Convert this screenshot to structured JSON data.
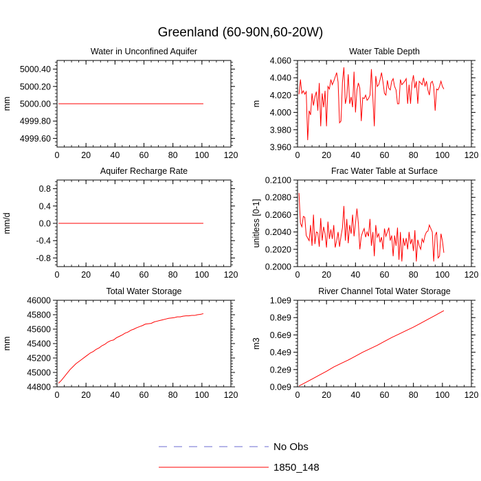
{
  "figure": {
    "title": "Greenland (60-90N,60-20W)"
  },
  "legend": {
    "entries": [
      {
        "label": "No Obs",
        "color": "#6a6ad0",
        "style": "dashed"
      },
      {
        "label": "1850_148",
        "color": "#ff0000",
        "style": "solid"
      }
    ]
  },
  "colors": {
    "series": "#ff0000",
    "axes": "#000000"
  },
  "chart_data": [
    {
      "id": "unconfined-aquifer",
      "type": "line",
      "title": "Water in Unconfined Aquifer",
      "xlabel": "",
      "ylabel": "mm",
      "xlim": [
        0,
        120
      ],
      "ylim": [
        4999.5,
        5000.5
      ],
      "xticks": [
        0,
        20,
        40,
        60,
        80,
        100,
        120
      ],
      "xtick_labels": [
        "0",
        "20",
        "40",
        "60",
        "80",
        "100",
        "120"
      ],
      "yticks": [
        4999.6,
        4999.8,
        5000.0,
        5000.2,
        5000.4
      ],
      "ytick_labels": [
        "4999.60",
        "4999.80",
        "5000.00",
        "5000.20",
        "5000.40"
      ],
      "series": [
        {
          "x": [
            1,
            101
          ],
          "y": [
            5000.0,
            5000.0
          ]
        }
      ]
    },
    {
      "id": "water-table-depth",
      "type": "line",
      "title": "Water Table Depth",
      "xlabel": "",
      "ylabel": "m",
      "xlim": [
        0,
        120
      ],
      "ylim": [
        3.96,
        4.06
      ],
      "xticks": [
        0,
        20,
        40,
        60,
        80,
        100,
        120
      ],
      "xtick_labels": [
        "0",
        "20",
        "40",
        "60",
        "80",
        "100",
        "120"
      ],
      "yticks": [
        3.96,
        3.98,
        4.0,
        4.02,
        4.04,
        4.06
      ],
      "ytick_labels": [
        "3.960",
        "3.980",
        "4.000",
        "4.020",
        "4.040",
        "4.060"
      ],
      "series": [
        {
          "x": [
            1,
            2,
            3,
            4,
            5,
            6,
            7,
            8,
            9,
            10,
            11,
            12,
            13,
            14,
            15,
            16,
            17,
            18,
            19,
            20,
            21,
            22,
            23,
            24,
            25,
            26,
            27,
            28,
            29,
            30,
            31,
            32,
            33,
            34,
            35,
            36,
            37,
            38,
            39,
            40,
            41,
            42,
            43,
            44,
            45,
            46,
            47,
            48,
            49,
            50,
            51,
            52,
            53,
            54,
            55,
            56,
            57,
            58,
            59,
            60,
            61,
            62,
            63,
            64,
            65,
            66,
            67,
            68,
            69,
            70,
            71,
            72,
            73,
            74,
            75,
            76,
            77,
            78,
            79,
            80,
            81,
            82,
            83,
            84,
            85,
            86,
            87,
            88,
            89,
            90,
            91,
            92,
            93,
            94,
            95,
            96,
            97,
            98,
            99,
            100,
            101
          ],
          "y": [
            4.021,
            4.038,
            4.022,
            4.025,
            4.021,
            4.024,
            3.968,
            4.002,
            3.997,
            4.022,
            4.008,
            4.018,
            4.024,
            4.002,
            4.034,
            3.984,
            4.022,
            4.006,
            4.025,
            3.984,
            4.03,
            4.027,
            4.038,
            4.032,
            4.036,
            4.041,
            4.046,
            4.035,
            3.988,
            3.99,
            4.035,
            4.052,
            4.01,
            4.018,
            4.044,
            4.01,
            4.018,
            4.006,
            4.047,
            4.0,
            4.026,
            4.034,
            4.028,
            3.99,
            4.017,
            4.016,
            4.02,
            4.014,
            4.016,
            4.02,
            4.05,
            4.017,
            3.984,
            4.042,
            4.03,
            4.032,
            4.038,
            4.046,
            4.035,
            4.022,
            4.02,
            4.037,
            4.028,
            4.026,
            4.036,
            4.039,
            4.03,
            4.026,
            4.01,
            4.01,
            4.038,
            4.032,
            4.034,
            4.036,
            4.039,
            4.01,
            4.032,
            4.01,
            4.034,
            4.043,
            4.028,
            4.036,
            4.01,
            4.036,
            4.034,
            4.032,
            4.04,
            4.03,
            4.036,
            4.026,
            4.02,
            4.034,
            4.036,
            4.03,
            4.002,
            4.027,
            4.026,
            4.03,
            4.036,
            4.03,
            4.027
          ]
        }
      ]
    },
    {
      "id": "aquifer-recharge",
      "type": "line",
      "title": "Aquifer Recharge Rate",
      "xlabel": "",
      "ylabel": "mm/d",
      "xlim": [
        0,
        120
      ],
      "ylim": [
        -1.0,
        1.0
      ],
      "xticks": [
        0,
        20,
        40,
        60,
        80,
        100,
        120
      ],
      "xtick_labels": [
        "0",
        "20",
        "40",
        "60",
        "80",
        "100",
        "120"
      ],
      "yticks": [
        -0.8,
        -0.4,
        0.0,
        0.4,
        0.8
      ],
      "ytick_labels": [
        "-0.8",
        "-0.4",
        "0.0",
        "0.4",
        "0.8"
      ],
      "series": [
        {
          "x": [
            1,
            101
          ],
          "y": [
            0.0,
            0.0
          ]
        }
      ]
    },
    {
      "id": "frac-water-table",
      "type": "line",
      "title": "Frac Water Table at Surface",
      "xlabel": "",
      "ylabel": "unitless [0-1]",
      "xlim": [
        0,
        120
      ],
      "ylim": [
        0.2,
        0.21
      ],
      "xticks": [
        0,
        20,
        40,
        60,
        80,
        100,
        120
      ],
      "xtick_labels": [
        "0",
        "20",
        "40",
        "60",
        "80",
        "100",
        "120"
      ],
      "yticks": [
        0.2,
        0.202,
        0.204,
        0.206,
        0.208,
        0.21
      ],
      "ytick_labels": [
        "0.2000",
        "0.2020",
        "0.2040",
        "0.2060",
        "0.2080",
        "0.2100"
      ],
      "series": [
        {
          "x": [
            1,
            2,
            3,
            4,
            5,
            6,
            7,
            8,
            9,
            10,
            11,
            12,
            13,
            14,
            15,
            16,
            17,
            18,
            19,
            20,
            21,
            22,
            23,
            24,
            25,
            26,
            27,
            28,
            29,
            30,
            31,
            32,
            33,
            34,
            35,
            36,
            37,
            38,
            39,
            40,
            41,
            42,
            43,
            44,
            45,
            46,
            47,
            48,
            49,
            50,
            51,
            52,
            53,
            54,
            55,
            56,
            57,
            58,
            59,
            60,
            61,
            62,
            63,
            64,
            65,
            66,
            67,
            68,
            69,
            70,
            71,
            72,
            73,
            74,
            75,
            76,
            77,
            78,
            79,
            80,
            81,
            82,
            83,
            84,
            85,
            86,
            87,
            88,
            89,
            90,
            91,
            92,
            93,
            94,
            95,
            96,
            97,
            98,
            99,
            100,
            101
          ],
          "y": [
            0.2085,
            0.205,
            0.2046,
            0.2058,
            0.2057,
            0.2036,
            0.2033,
            0.203,
            0.2048,
            0.2024,
            0.206,
            0.2026,
            0.204,
            0.2039,
            0.2023,
            0.2056,
            0.203,
            0.2046,
            0.2038,
            0.2022,
            0.2052,
            0.2032,
            0.2043,
            0.2032,
            0.2048,
            0.2022,
            0.203,
            0.204,
            0.2023,
            0.2035,
            0.2045,
            0.207,
            0.203,
            0.2055,
            0.2027,
            0.2048,
            0.2038,
            0.206,
            0.2035,
            0.205,
            0.2067,
            0.205,
            0.202,
            0.2035,
            0.204,
            0.2044,
            0.2034,
            0.204,
            0.2035,
            0.2055,
            0.2024,
            0.204,
            0.2012,
            0.2048,
            0.2034,
            0.2038,
            0.2028,
            0.2034,
            0.202,
            0.2044,
            0.2035,
            0.204,
            0.2045,
            0.203,
            0.2036,
            0.2012,
            0.2036,
            0.2024,
            0.2045,
            0.2008,
            0.204,
            0.2006,
            0.2033,
            0.2024,
            0.2033,
            0.202,
            0.204,
            0.2026,
            0.2032,
            0.2018,
            0.2042,
            0.2006,
            0.2031,
            0.2024,
            0.202,
            0.2032,
            0.2028,
            0.2036,
            0.204,
            0.2041,
            0.2048,
            0.2044,
            0.204,
            0.2006,
            0.2036,
            0.204,
            0.201,
            0.2012,
            0.2038,
            0.203,
            0.2016
          ]
        }
      ]
    },
    {
      "id": "total-water-storage",
      "type": "line",
      "title": "Total Water Storage",
      "xlabel": "",
      "ylabel": "mm",
      "xlim": [
        0,
        120
      ],
      "ylim": [
        44800,
        46000
      ],
      "xticks": [
        0,
        20,
        40,
        60,
        80,
        100,
        120
      ],
      "xtick_labels": [
        "0",
        "20",
        "40",
        "60",
        "80",
        "100",
        "120"
      ],
      "yticks": [
        44800,
        45000,
        45200,
        45400,
        45600,
        45800,
        46000
      ],
      "ytick_labels": [
        "44800",
        "45000",
        "45200",
        "45400",
        "45600",
        "45800",
        "46000"
      ],
      "series": [
        {
          "x": [
            1,
            3,
            5,
            7,
            9,
            11,
            13,
            15,
            17,
            19,
            21,
            23,
            25,
            27,
            29,
            31,
            33,
            35,
            37,
            39,
            41,
            43,
            45,
            47,
            49,
            51,
            53,
            55,
            57,
            59,
            61,
            63,
            65,
            67,
            69,
            71,
            73,
            75,
            77,
            79,
            81,
            83,
            85,
            87,
            89,
            91,
            93,
            95,
            97,
            99,
            101
          ],
          "y": [
            44850,
            44890,
            44940,
            44990,
            45040,
            45080,
            45120,
            45150,
            45180,
            45210,
            45240,
            45270,
            45290,
            45320,
            45340,
            45370,
            45390,
            45420,
            45440,
            45450,
            45480,
            45500,
            45520,
            45545,
            45560,
            45585,
            45600,
            45620,
            45635,
            45650,
            45670,
            45675,
            45680,
            45700,
            45710,
            45720,
            45730,
            45740,
            45750,
            45755,
            45760,
            45770,
            45770,
            45780,
            45785,
            45785,
            45790,
            45790,
            45800,
            45805,
            45815
          ]
        }
      ]
    },
    {
      "id": "river-channel",
      "type": "line",
      "title": "River Channel Total Water Storage",
      "xlabel": "",
      "ylabel": "m3",
      "xlim": [
        0,
        120
      ],
      "ylim": [
        0,
        1000000000.0
      ],
      "xticks": [
        0,
        20,
        40,
        60,
        80,
        100,
        120
      ],
      "xtick_labels": [
        "0",
        "20",
        "40",
        "60",
        "80",
        "100",
        "120"
      ],
      "yticks": [
        0,
        200000000.0,
        400000000.0,
        600000000.0,
        800000000.0,
        1000000000.0
      ],
      "ytick_labels": [
        "0.0e9",
        "0.2e9",
        "0.4e9",
        "0.6e9",
        "0.8e9",
        "1.0e9"
      ],
      "series": [
        {
          "x": [
            1,
            5,
            10,
            15,
            20,
            25,
            30,
            35,
            40,
            45,
            50,
            55,
            60,
            65,
            70,
            75,
            80,
            85,
            90,
            95,
            101
          ],
          "y": [
            10000000.0,
            45000000.0,
            90000000.0,
            135000000.0,
            180000000.0,
            230000000.0,
            270000000.0,
            310000000.0,
            355000000.0,
            400000000.0,
            440000000.0,
            480000000.0,
            525000000.0,
            570000000.0,
            610000000.0,
            650000000.0,
            690000000.0,
            735000000.0,
            780000000.0,
            825000000.0,
            880000000.0
          ]
        }
      ]
    }
  ]
}
